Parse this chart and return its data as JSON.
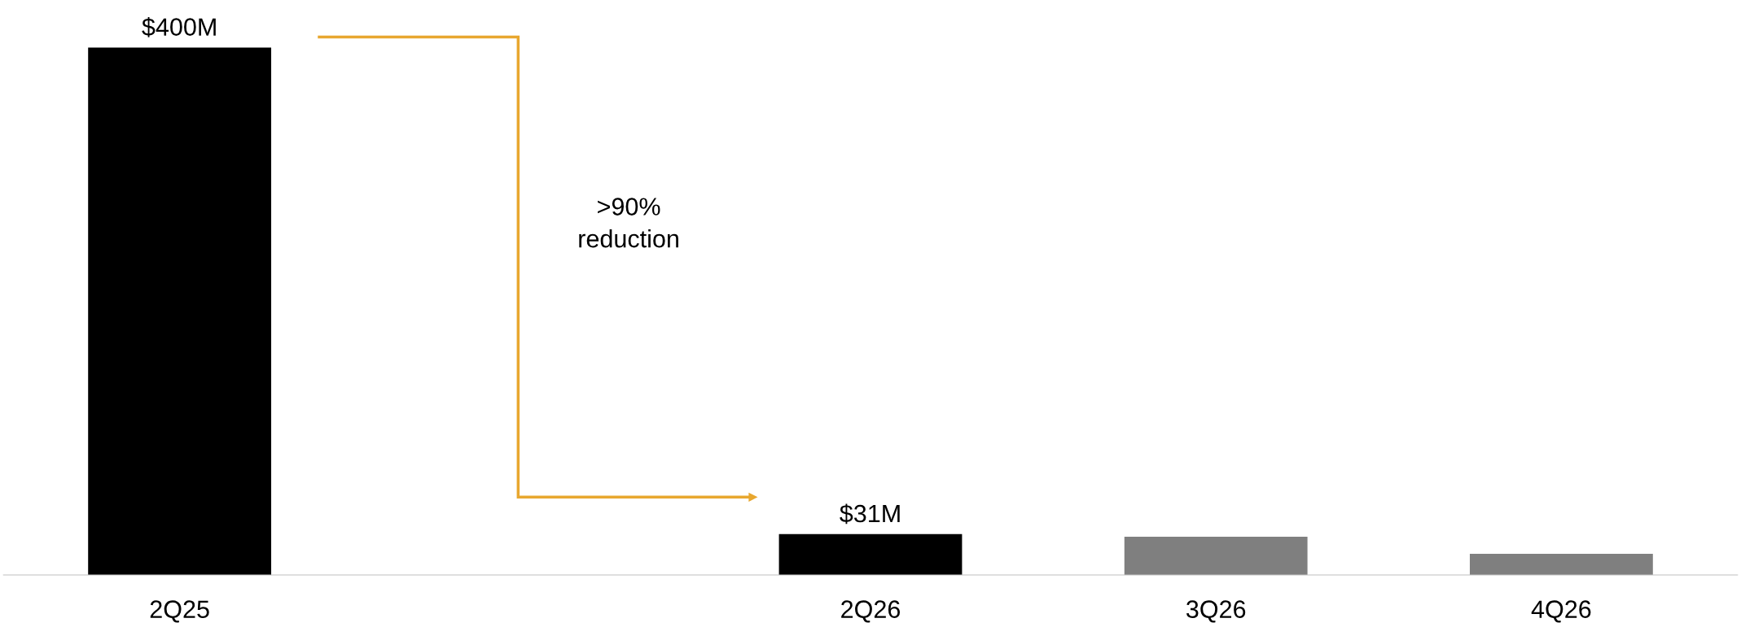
{
  "chart_data": {
    "type": "bar",
    "categories": [
      "2Q25",
      null,
      "2Q26",
      "3Q26",
      "4Q26"
    ],
    "values": [
      400,
      null,
      31,
      29,
      16
    ],
    "colors": [
      "#000000",
      "#000000",
      "#000000",
      "#7f7f7f",
      "#7f7f7f"
    ],
    "value_labels": [
      "$400M",
      null,
      "$31M",
      null,
      null
    ],
    "annotations": [
      ">90%\nreduction"
    ],
    "grid": false,
    "legend": false
  }
}
